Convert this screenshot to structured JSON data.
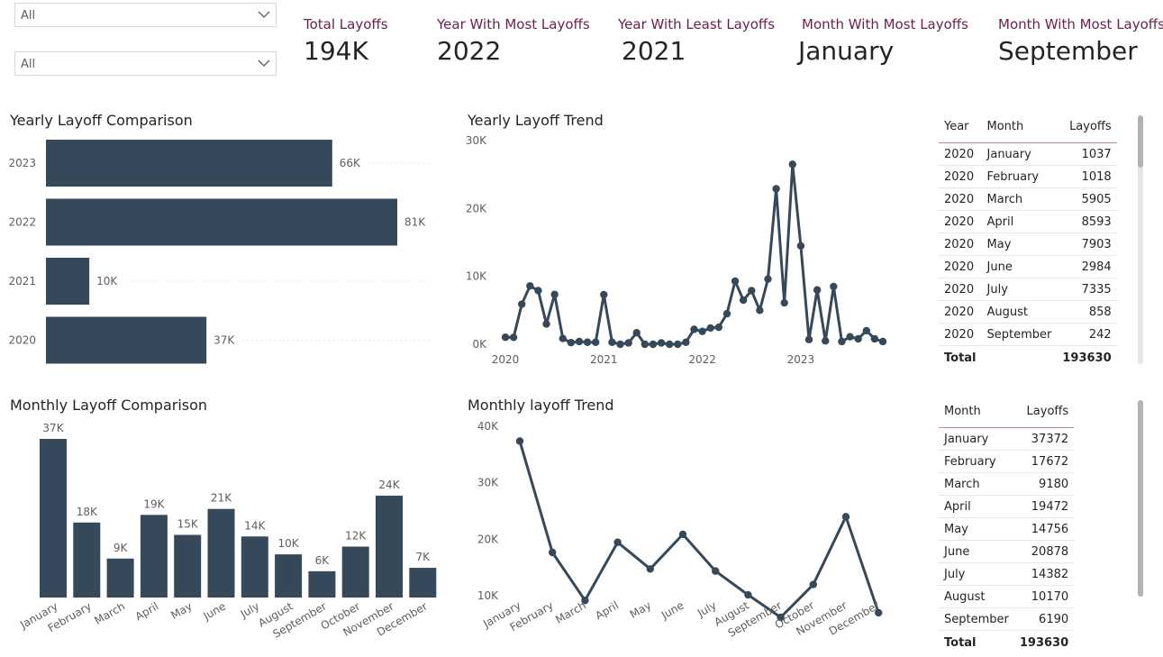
{
  "slicers": [
    {
      "value": "All"
    },
    {
      "value": "All"
    }
  ],
  "kpis": [
    {
      "label": "Total Layoffs",
      "value": "194K"
    },
    {
      "label": "Year With Most Layoffs",
      "value": "2022"
    },
    {
      "label": "Year With Least Layoffs",
      "value": "2021"
    },
    {
      "label": "Month With Most Layoffs",
      "value": "January"
    },
    {
      "label": "Month With Most Layoffs",
      "value": "September"
    }
  ],
  "colors": {
    "bar": "#36495a",
    "line": "#36495a",
    "kpi_label": "#6b1e50",
    "axis_text": "#605e5c"
  },
  "chart_data": [
    {
      "id": "yearly-comparison",
      "type": "bar",
      "orientation": "horizontal",
      "title": "Yearly Layoff Comparison",
      "categories": [
        "2023",
        "2022",
        "2021",
        "2020"
      ],
      "values": [
        66,
        81,
        10,
        37
      ],
      "data_labels": [
        "66K",
        "81K",
        "10K",
        "37K"
      ],
      "xlim": [
        0,
        90
      ]
    },
    {
      "id": "yearly-trend",
      "type": "line",
      "title": "Yearly Layoff Trend",
      "x_tick_labels": [
        "2020",
        "2021",
        "2022",
        "2023"
      ],
      "y_tick_labels": [
        "30K",
        "20K",
        "10K",
        "0K"
      ],
      "y_ticks": [
        30000,
        20000,
        10000,
        0
      ],
      "ylim": [
        0,
        30000
      ],
      "x_start": "2020-01",
      "values": [
        1037,
        1018,
        5905,
        8593,
        7903,
        2984,
        7335,
        858,
        242,
        400,
        300,
        300,
        7300,
        300,
        0,
        200,
        1700,
        0,
        0,
        200,
        0,
        0,
        300,
        2200,
        1900,
        2400,
        2500,
        4500,
        9300,
        6500,
        7900,
        5000,
        9600,
        22900,
        6100,
        26500,
        14500,
        700,
        8000,
        500,
        8500,
        400,
        1100,
        800,
        2000,
        800,
        400
      ]
    },
    {
      "id": "monthly-comparison",
      "type": "bar",
      "title": "Monthly Layoff Comparison",
      "categories": [
        "January",
        "February",
        "March",
        "April",
        "May",
        "June",
        "July",
        "August",
        "September",
        "October",
        "November",
        "December"
      ],
      "values": [
        37372,
        17672,
        9180,
        19472,
        14756,
        20878,
        14382,
        10170,
        6190,
        12000,
        24000,
        7000
      ],
      "data_labels": [
        "37K",
        "18K",
        "9K",
        "19K",
        "15K",
        "21K",
        "14K",
        "10K",
        "6K",
        "12K",
        "24K",
        "7K"
      ],
      "ylim": [
        0,
        40000
      ]
    },
    {
      "id": "monthly-trend",
      "type": "line",
      "title": "Monthly layoff Trend",
      "categories": [
        "January",
        "February",
        "March",
        "April",
        "May",
        "June",
        "July",
        "August",
        "September",
        "October",
        "November",
        "December"
      ],
      "values": [
        37372,
        17672,
        9180,
        19472,
        14756,
        20878,
        14382,
        10170,
        6190,
        12000,
        24000,
        7000
      ],
      "y_tick_labels": [
        "40K",
        "30K",
        "20K",
        "10K"
      ],
      "y_ticks": [
        40000,
        30000,
        20000,
        10000
      ],
      "ylim": [
        3000,
        40000
      ]
    }
  ],
  "table_yearly": {
    "headers": [
      "Year",
      "Month",
      "Layoffs"
    ],
    "rows": [
      [
        "2020",
        "January",
        "1037"
      ],
      [
        "2020",
        "February",
        "1018"
      ],
      [
        "2020",
        "March",
        "5905"
      ],
      [
        "2020",
        "April",
        "8593"
      ],
      [
        "2020",
        "May",
        "7903"
      ],
      [
        "2020",
        "June",
        "2984"
      ],
      [
        "2020",
        "July",
        "7335"
      ],
      [
        "2020",
        "August",
        "858"
      ],
      [
        "2020",
        "September",
        "242"
      ]
    ],
    "total_label": "Total",
    "total_value": "193630"
  },
  "table_monthly": {
    "headers": [
      "Month",
      "Layoffs"
    ],
    "rows": [
      [
        "January",
        "37372"
      ],
      [
        "February",
        "17672"
      ],
      [
        "March",
        "9180"
      ],
      [
        "April",
        "19472"
      ],
      [
        "May",
        "14756"
      ],
      [
        "June",
        "20878"
      ],
      [
        "July",
        "14382"
      ],
      [
        "August",
        "10170"
      ],
      [
        "September",
        "6190"
      ]
    ],
    "total_label": "Total",
    "total_value": "193630"
  }
}
